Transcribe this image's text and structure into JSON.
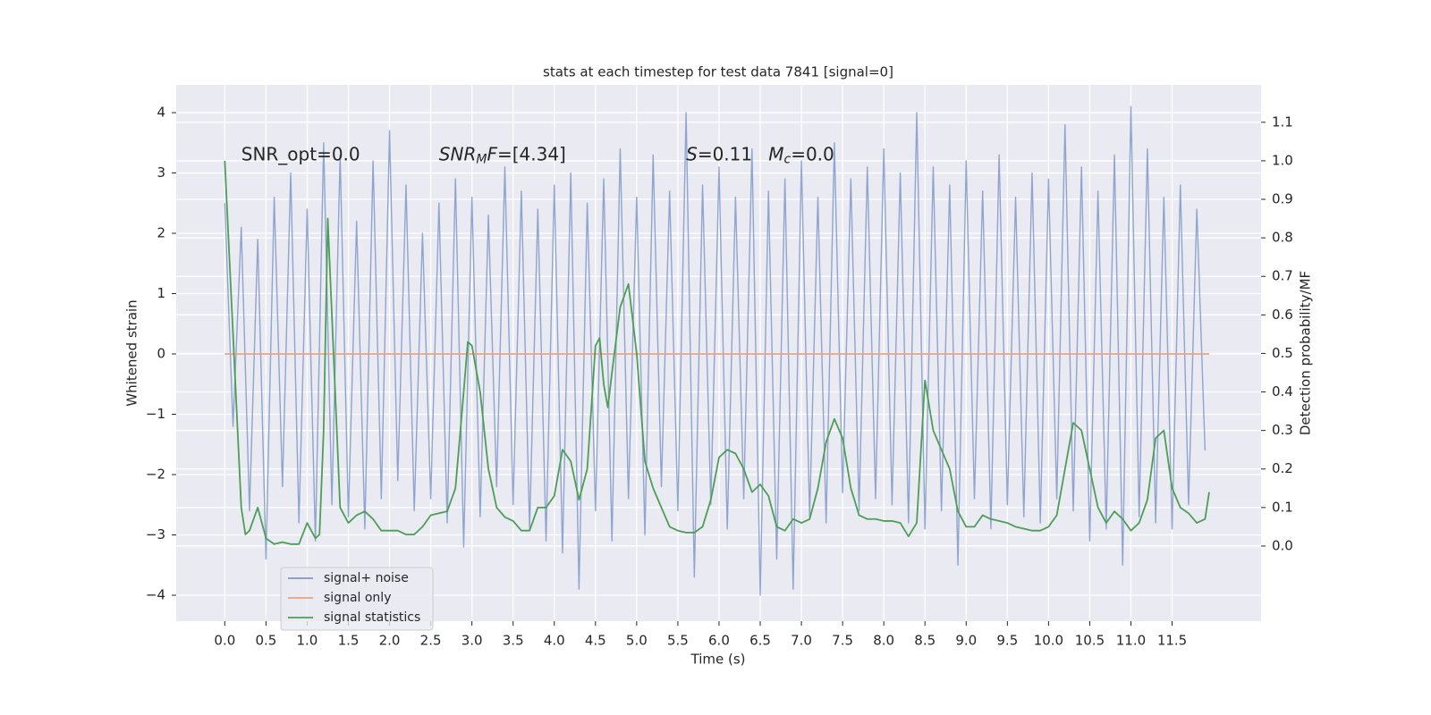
{
  "chart_data": {
    "type": "line",
    "title": "stats at each timestep for test data 7841 [signal=0]",
    "x_label": "Time (s)",
    "y_label": "Whitened strain",
    "y2_label": "Detection probability/MF",
    "xlim": [
      -0.59,
      12.58
    ],
    "ylim": [
      -4.43,
      4.46
    ],
    "y2lim": [
      -0.195,
      1.197
    ],
    "grid": true,
    "legend": "lower left",
    "xticks": [
      {
        "value": 0,
        "label": "0.0"
      },
      0.5,
      {
        "value": 1,
        "label": "1.0"
      },
      1.5,
      {
        "value": 2,
        "label": "2.0"
      },
      2.5,
      {
        "value": 3,
        "label": "3.0"
      },
      3.5,
      {
        "value": 4,
        "label": "4.0"
      },
      4.5,
      {
        "value": 5,
        "label": "5.0"
      },
      5.5,
      {
        "value": 6,
        "label": "6.0"
      },
      6.5,
      {
        "value": 7,
        "label": "7.0"
      },
      7.5,
      {
        "value": 8,
        "label": "8.0"
      },
      8.5,
      {
        "value": 9,
        "label": "9.0"
      },
      9.5,
      {
        "value": 10,
        "label": "10.0"
      },
      10.5,
      {
        "value": 11,
        "label": "11.0"
      },
      11.5
    ],
    "yticks": [
      {
        "value": -4,
        "label": "−4"
      },
      {
        "value": -3,
        "label": "−3"
      },
      {
        "value": -2,
        "label": "−2"
      },
      {
        "value": -1,
        "label": "−1"
      },
      0,
      1,
      2,
      3,
      4
    ],
    "y2ticks": [
      {
        "value": 0,
        "label": "0.0"
      },
      0.1,
      0.2,
      0.3,
      0.4,
      0.5,
      0.6,
      0.7,
      0.8,
      0.9,
      {
        "value": 1,
        "label": "1.0"
      },
      1.1
    ],
    "annotations": [
      {
        "x": 0.2,
        "y": 3.3,
        "parts": [
          {
            "text": "SNR_opt=0.0",
            "italic": false,
            "sub": false
          }
        ]
      },
      {
        "x": 2.6,
        "y": 3.3,
        "parts": [
          {
            "text": "SNR",
            "italic": true,
            "sub": false
          },
          {
            "text": "M",
            "italic": true,
            "sub": true
          },
          {
            "text": "F",
            "italic": true,
            "sub": false
          },
          {
            "text": "=[4.34]",
            "italic": false,
            "sub": false
          }
        ]
      },
      {
        "x": 5.6,
        "y": 3.3,
        "parts": [
          {
            "text": "S",
            "italic": true,
            "sub": false
          },
          {
            "text": "=0.11",
            "italic": false,
            "sub": false
          }
        ]
      },
      {
        "x": 6.6,
        "y": 3.3,
        "parts": [
          {
            "text": "M",
            "italic": true,
            "sub": false
          },
          {
            "text": "c",
            "italic": true,
            "sub": true
          },
          {
            "text": "=0.0",
            "italic": false,
            "sub": false
          }
        ]
      }
    ],
    "series": [
      {
        "name": "signal+ noise",
        "color": "#7f98c8",
        "axis": "y",
        "x": [
          0,
          0.1,
          0.2,
          0.3,
          0.4,
          0.5,
          0.6,
          0.7,
          0.8,
          0.9,
          1,
          1.1,
          1.2,
          1.3,
          1.4,
          1.5,
          1.6,
          1.7,
          1.8,
          1.9,
          2,
          2.1,
          2.2,
          2.3,
          2.4,
          2.5,
          2.6,
          2.7,
          2.8,
          2.9,
          3,
          3.1,
          3.2,
          3.3,
          3.4,
          3.5,
          3.6,
          3.7,
          3.8,
          3.9,
          4,
          4.1,
          4.2,
          4.3,
          4.4,
          4.5,
          4.6,
          4.7,
          4.8,
          4.9,
          5,
          5.1,
          5.2,
          5.3,
          5.4,
          5.5,
          5.6,
          5.7,
          5.8,
          5.9,
          6,
          6.1,
          6.2,
          6.3,
          6.4,
          6.5,
          6.6,
          6.7,
          6.8,
          6.9,
          7,
          7.1,
          7.2,
          7.3,
          7.4,
          7.5,
          7.6,
          7.7,
          7.8,
          7.9,
          8,
          8.1,
          8.2,
          8.3,
          8.4,
          8.5,
          8.6,
          8.7,
          8.8,
          8.9,
          9,
          9.1,
          9.2,
          9.3,
          9.4,
          9.5,
          9.6,
          9.7,
          9.8,
          9.9,
          10,
          10.1,
          10.2,
          10.3,
          10.4,
          10.5,
          10.6,
          10.7,
          10.8,
          10.9,
          11,
          11.1,
          11.2,
          11.3,
          11.4,
          11.5,
          11.6,
          11.7,
          11.8,
          11.9
        ],
        "values": [
          2.5,
          -1.2,
          2.1,
          -2.6,
          1.9,
          -3.4,
          2.6,
          -2.2,
          3.0,
          -2.8,
          2.4,
          -3.1,
          3.5,
          -2.5,
          3.3,
          -2.7,
          2.2,
          -2.9,
          3.2,
          -2.4,
          3.7,
          -2.1,
          2.8,
          -2.6,
          2.0,
          -2.4,
          2.5,
          -2.8,
          2.9,
          -3.2,
          2.6,
          -2.7,
          2.3,
          -2.2,
          3.1,
          -2.5,
          2.7,
          -2.9,
          2.4,
          -3.1,
          2.8,
          -3.3,
          3.0,
          -3.9,
          2.5,
          -2.6,
          2.9,
          -3.1,
          3.4,
          -2.4,
          2.6,
          -3.0,
          3.3,
          -2.2,
          2.7,
          -2.6,
          4.0,
          -3.7,
          2.8,
          -2.5,
          3.1,
          -2.9,
          2.6,
          -2.4,
          3.4,
          -4.0,
          2.7,
          -3.4,
          2.9,
          -3.9,
          3.2,
          -2.7,
          2.6,
          -2.8,
          3.5,
          -2.3,
          2.9,
          -2.6,
          3.1,
          -2.4,
          3.4,
          -2.5,
          3.0,
          -2.8,
          4.0,
          -2.9,
          3.1,
          -2.6,
          2.8,
          -3.5,
          3.2,
          -2.4,
          2.7,
          -2.9,
          3.3,
          -2.5,
          2.6,
          -2.7,
          3.0,
          -2.8,
          2.9,
          -2.4,
          3.8,
          -2.6,
          3.1,
          -3.1,
          2.7,
          -2.9,
          3.3,
          -3.5,
          4.1,
          -2.7,
          3.4,
          -2.8,
          2.6,
          -2.9,
          2.8,
          -2.5,
          2.4,
          -1.6
        ]
      },
      {
        "name": "signal only",
        "color": "#e8a285",
        "axis": "y",
        "x": [
          0,
          11.95
        ],
        "values": [
          0,
          0
        ]
      },
      {
        "name": "signal statistics",
        "color": "#4c9e57",
        "axis": "y2",
        "x": [
          0,
          0.1,
          0.2,
          0.25,
          0.3,
          0.4,
          0.5,
          0.6,
          0.7,
          0.8,
          0.9,
          1,
          1.1,
          1.15,
          1.2,
          1.25,
          1.3,
          1.4,
          1.5,
          1.6,
          1.7,
          1.8,
          1.9,
          2,
          2.1,
          2.2,
          2.3,
          2.4,
          2.5,
          2.6,
          2.7,
          2.8,
          2.9,
          2.95,
          3,
          3.1,
          3.2,
          3.3,
          3.4,
          3.5,
          3.6,
          3.7,
          3.8,
          3.9,
          4,
          4.1,
          4.2,
          4.3,
          4.4,
          4.5,
          4.55,
          4.6,
          4.65,
          4.7,
          4.8,
          4.9,
          5,
          5.1,
          5.2,
          5.3,
          5.4,
          5.5,
          5.6,
          5.7,
          5.8,
          5.9,
          6,
          6.1,
          6.2,
          6.3,
          6.4,
          6.5,
          6.6,
          6.7,
          6.8,
          6.9,
          7,
          7.1,
          7.2,
          7.3,
          7.4,
          7.5,
          7.6,
          7.7,
          7.8,
          7.9,
          8,
          8.1,
          8.2,
          8.3,
          8.4,
          8.5,
          8.6,
          8.7,
          8.8,
          8.9,
          9,
          9.1,
          9.2,
          9.3,
          9.4,
          9.5,
          9.6,
          9.7,
          9.8,
          9.9,
          10,
          10.1,
          10.2,
          10.3,
          10.4,
          10.5,
          10.6,
          10.7,
          10.8,
          10.9,
          11,
          11.1,
          11.2,
          11.3,
          11.4,
          11.5,
          11.6,
          11.7,
          11.8,
          11.9,
          11.95
        ],
        "values": [
          1.0,
          0.55,
          0.1,
          0.03,
          0.04,
          0.1,
          0.02,
          0.005,
          0.01,
          0.005,
          0.005,
          0.06,
          0.02,
          0.03,
          0.3,
          0.85,
          0.6,
          0.1,
          0.06,
          0.08,
          0.09,
          0.07,
          0.04,
          0.04,
          0.04,
          0.03,
          0.03,
          0.05,
          0.08,
          0.085,
          0.09,
          0.15,
          0.4,
          0.53,
          0.52,
          0.4,
          0.2,
          0.1,
          0.075,
          0.065,
          0.04,
          0.04,
          0.1,
          0.1,
          0.13,
          0.25,
          0.22,
          0.12,
          0.2,
          0.52,
          0.54,
          0.42,
          0.36,
          0.45,
          0.62,
          0.68,
          0.5,
          0.22,
          0.15,
          0.1,
          0.05,
          0.04,
          0.035,
          0.035,
          0.05,
          0.12,
          0.23,
          0.25,
          0.24,
          0.2,
          0.14,
          0.16,
          0.13,
          0.05,
          0.04,
          0.07,
          0.06,
          0.07,
          0.15,
          0.27,
          0.33,
          0.28,
          0.15,
          0.08,
          0.07,
          0.07,
          0.065,
          0.065,
          0.06,
          0.025,
          0.06,
          0.43,
          0.3,
          0.25,
          0.2,
          0.09,
          0.05,
          0.05,
          0.08,
          0.07,
          0.065,
          0.06,
          0.05,
          0.045,
          0.04,
          0.04,
          0.05,
          0.08,
          0.2,
          0.32,
          0.3,
          0.2,
          0.1,
          0.06,
          0.09,
          0.07,
          0.04,
          0.06,
          0.12,
          0.28,
          0.3,
          0.15,
          0.1,
          0.085,
          0.06,
          0.07,
          0.14
        ]
      }
    ]
  }
}
